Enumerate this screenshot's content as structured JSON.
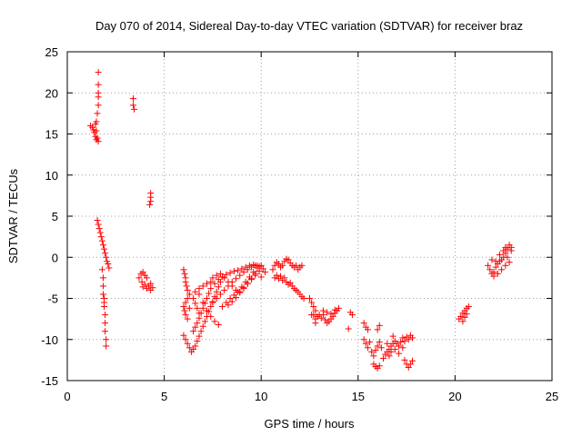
{
  "colors": {
    "series": "#ff0000",
    "grid": "#a0a0a0",
    "frame": "#000000",
    "background": "#ffffff"
  },
  "chart_data": {
    "type": "scatter",
    "marker": "plus",
    "title": "Day 070 of 2014, Sidereal Day-to-day VTEC variation (SDTVAR) for receiver braz",
    "xlabel": "GPS time / hours",
    "ylabel": "SDTVAR / TECUs",
    "xlim": [
      0,
      25
    ],
    "ylim": [
      -15,
      25
    ],
    "xticks": [
      0,
      5,
      10,
      15,
      20,
      25
    ],
    "yticks": [
      -15,
      -10,
      -5,
      0,
      5,
      10,
      15,
      20,
      25
    ],
    "grid": true,
    "series": [
      {
        "name": "SDTVAR",
        "points": [
          [
            1.2,
            16.0
          ],
          [
            1.3,
            15.8
          ],
          [
            1.35,
            15.5
          ],
          [
            1.4,
            15.2
          ],
          [
            1.45,
            14.7
          ],
          [
            1.5,
            14.3
          ],
          [
            1.55,
            14.5
          ],
          [
            1.6,
            14.1
          ],
          [
            1.45,
            16.2
          ],
          [
            1.5,
            15.4
          ],
          [
            1.5,
            16.5
          ],
          [
            1.55,
            17.5
          ],
          [
            1.6,
            18.5
          ],
          [
            1.6,
            19.5
          ],
          [
            1.6,
            20.0
          ],
          [
            1.6,
            21.0
          ],
          [
            1.6,
            22.5
          ],
          [
            1.55,
            4.5
          ],
          [
            1.6,
            4.0
          ],
          [
            1.65,
            3.5
          ],
          [
            1.7,
            3.0
          ],
          [
            1.75,
            2.5
          ],
          [
            1.8,
            2.0
          ],
          [
            1.85,
            1.5
          ],
          [
            1.9,
            1.0
          ],
          [
            1.95,
            0.5
          ],
          [
            2.0,
            0.0
          ],
          [
            2.05,
            -0.5
          ],
          [
            2.1,
            -0.8
          ],
          [
            2.15,
            -1.3
          ],
          [
            1.8,
            -1.5
          ],
          [
            1.85,
            -2.5
          ],
          [
            1.85,
            -3.5
          ],
          [
            1.85,
            -4.5
          ],
          [
            1.9,
            -5.0
          ],
          [
            1.9,
            -5.5
          ],
          [
            1.9,
            -6.0
          ],
          [
            1.95,
            -7.0
          ],
          [
            1.95,
            -8.0
          ],
          [
            1.95,
            -9.0
          ],
          [
            2.0,
            -10.0
          ],
          [
            2.0,
            -10.8
          ],
          [
            3.4,
            19.3
          ],
          [
            3.4,
            18.5
          ],
          [
            3.45,
            18.0
          ],
          [
            4.3,
            7.8
          ],
          [
            4.3,
            7.3
          ],
          [
            4.3,
            6.8
          ],
          [
            4.25,
            6.4
          ],
          [
            3.7,
            -2.5
          ],
          [
            3.8,
            -2.0
          ],
          [
            3.9,
            -1.8
          ],
          [
            4.0,
            -2.2
          ],
          [
            3.85,
            -3.0
          ],
          [
            3.9,
            -3.6
          ],
          [
            4.0,
            -3.3
          ],
          [
            4.1,
            -3.8
          ],
          [
            4.2,
            -3.5
          ],
          [
            4.3,
            -3.2
          ],
          [
            4.4,
            -3.7
          ],
          [
            4.3,
            -4.0
          ],
          [
            4.1,
            -2.5
          ],
          [
            6.0,
            -6.0
          ],
          [
            6.05,
            -6.5
          ],
          [
            6.1,
            -7.0
          ],
          [
            6.2,
            -7.5
          ],
          [
            6.1,
            -5.5
          ],
          [
            6.2,
            -5.0
          ],
          [
            6.3,
            -6.2
          ],
          [
            6.3,
            -4.5
          ],
          [
            6.2,
            -4.0
          ],
          [
            6.15,
            -3.5
          ],
          [
            6.1,
            -3.0
          ],
          [
            6.1,
            -2.5
          ],
          [
            6.05,
            -2.0
          ],
          [
            6.0,
            -1.5
          ],
          [
            6.0,
            -9.5
          ],
          [
            6.1,
            -10.0
          ],
          [
            6.2,
            -10.5
          ],
          [
            6.3,
            -11.0
          ],
          [
            6.4,
            -11.5
          ],
          [
            6.5,
            -11.2
          ],
          [
            6.6,
            -10.8
          ],
          [
            6.7,
            -10.2
          ],
          [
            6.8,
            -9.6
          ],
          [
            6.9,
            -9.0
          ],
          [
            7.0,
            -8.4
          ],
          [
            7.1,
            -7.8
          ],
          [
            7.2,
            -7.2
          ],
          [
            7.3,
            -6.6
          ],
          [
            7.4,
            -6.0
          ],
          [
            7.5,
            -5.4
          ],
          [
            7.6,
            -4.8
          ],
          [
            7.7,
            -4.2
          ],
          [
            7.8,
            -3.6
          ],
          [
            7.9,
            -3.0
          ],
          [
            6.5,
            -9.0
          ],
          [
            6.6,
            -8.5
          ],
          [
            6.7,
            -8.0
          ],
          [
            6.8,
            -7.4
          ],
          [
            6.9,
            -6.8
          ],
          [
            7.0,
            -6.2
          ],
          [
            7.1,
            -5.6
          ],
          [
            7.2,
            -5.0
          ],
          [
            7.3,
            -4.4
          ],
          [
            7.4,
            -3.8
          ],
          [
            6.8,
            -4.5
          ],
          [
            7.0,
            -5.5
          ],
          [
            7.2,
            -6.5
          ],
          [
            7.4,
            -7.2
          ],
          [
            7.6,
            -7.8
          ],
          [
            7.8,
            -8.2
          ],
          [
            6.5,
            -5.0
          ],
          [
            6.6,
            -5.6
          ],
          [
            6.7,
            -6.2
          ],
          [
            6.8,
            -6.8
          ],
          [
            6.6,
            -4.2
          ],
          [
            6.8,
            -3.8
          ],
          [
            7.0,
            -3.5
          ],
          [
            7.2,
            -3.2
          ],
          [
            7.4,
            -3.0
          ],
          [
            7.5,
            -5.5
          ],
          [
            7.7,
            -5.0
          ],
          [
            7.9,
            -4.5
          ],
          [
            8.1,
            -4.0
          ],
          [
            8.3,
            -3.5
          ],
          [
            8.5,
            -3.0
          ],
          [
            8.7,
            -2.6
          ],
          [
            8.9,
            -2.2
          ],
          [
            9.1,
            -1.8
          ],
          [
            9.3,
            -1.5
          ],
          [
            9.5,
            -1.2
          ],
          [
            9.7,
            -1.0
          ],
          [
            9.9,
            -1.1
          ],
          [
            7.5,
            -2.5
          ],
          [
            7.7,
            -2.2
          ],
          [
            7.9,
            -2.0
          ],
          [
            8.1,
            -2.5
          ],
          [
            8.3,
            -3.0
          ],
          [
            8.5,
            -3.5
          ],
          [
            8.7,
            -4.0
          ],
          [
            8.9,
            -4.2
          ],
          [
            9.1,
            -3.8
          ],
          [
            9.3,
            -3.2
          ],
          [
            9.5,
            -2.7
          ],
          [
            9.7,
            -2.2
          ],
          [
            9.9,
            -1.7
          ],
          [
            8.0,
            -6.0
          ],
          [
            8.2,
            -5.5
          ],
          [
            8.4,
            -5.0
          ],
          [
            8.6,
            -4.6
          ],
          [
            8.8,
            -4.2
          ],
          [
            9.0,
            -3.6
          ],
          [
            9.2,
            -3.0
          ],
          [
            9.4,
            -2.4
          ],
          [
            9.6,
            -1.8
          ],
          [
            9.8,
            -1.3
          ],
          [
            10.0,
            -1.0
          ],
          [
            8.3,
            -5.8
          ],
          [
            8.5,
            -5.4
          ],
          [
            8.7,
            -4.9
          ],
          [
            8.9,
            -4.3
          ],
          [
            9.1,
            -3.7
          ],
          [
            9.3,
            -3.2
          ],
          [
            9.5,
            -2.6
          ],
          [
            9.7,
            -2.0
          ],
          [
            7.6,
            -3.2
          ],
          [
            7.8,
            -2.7
          ],
          [
            8.0,
            -2.4
          ],
          [
            8.2,
            -2.1
          ],
          [
            8.4,
            -1.9
          ],
          [
            8.6,
            -1.7
          ],
          [
            8.8,
            -1.6
          ],
          [
            9.0,
            -1.4
          ],
          [
            9.2,
            -1.2
          ],
          [
            9.4,
            -1.0
          ],
          [
            9.6,
            -0.9
          ],
          [
            9.8,
            -1.0
          ],
          [
            10.1,
            -1.4
          ],
          [
            10.0,
            -2.4
          ],
          [
            10.2,
            -1.8
          ],
          [
            10.6,
            -1.5
          ],
          [
            10.7,
            -1.0
          ],
          [
            10.8,
            -0.6
          ],
          [
            10.9,
            -0.8
          ],
          [
            11.0,
            -1.2
          ],
          [
            11.1,
            -1.0
          ],
          [
            11.2,
            -0.5
          ],
          [
            11.3,
            -0.2
          ],
          [
            11.4,
            -0.3
          ],
          [
            11.5,
            -0.7
          ],
          [
            11.6,
            -1.0
          ],
          [
            11.7,
            -1.2
          ],
          [
            11.8,
            -1.0
          ],
          [
            11.9,
            -1.5
          ],
          [
            12.0,
            -1.2
          ],
          [
            12.1,
            -1.0
          ],
          [
            10.7,
            -2.5
          ],
          [
            10.8,
            -2.2
          ],
          [
            10.9,
            -2.6
          ],
          [
            11.0,
            -2.3
          ],
          [
            11.1,
            -2.8
          ],
          [
            11.2,
            -2.5
          ],
          [
            11.3,
            -3.0
          ],
          [
            11.4,
            -3.3
          ],
          [
            11.5,
            -3.1
          ],
          [
            11.6,
            -3.5
          ],
          [
            11.7,
            -3.8
          ],
          [
            11.8,
            -4.0
          ],
          [
            11.9,
            -4.2
          ],
          [
            12.0,
            -4.5
          ],
          [
            12.1,
            -4.8
          ],
          [
            12.2,
            -5.0
          ],
          [
            12.5,
            -5.0
          ],
          [
            12.6,
            -5.5
          ],
          [
            12.7,
            -6.0
          ],
          [
            12.8,
            -6.5
          ],
          [
            12.7,
            -7.0
          ],
          [
            12.8,
            -7.5
          ],
          [
            12.9,
            -7.2
          ],
          [
            13.0,
            -7.0
          ],
          [
            13.1,
            -7.4
          ],
          [
            13.2,
            -7.0
          ],
          [
            13.3,
            -7.6
          ],
          [
            13.4,
            -8.0
          ],
          [
            13.5,
            -7.8
          ],
          [
            13.6,
            -7.5
          ],
          [
            13.7,
            -7.2
          ],
          [
            13.8,
            -6.8
          ],
          [
            13.9,
            -6.5
          ],
          [
            14.0,
            -6.2
          ],
          [
            12.6,
            -7.0
          ],
          [
            12.8,
            -8.0
          ],
          [
            13.2,
            -6.5
          ],
          [
            13.4,
            -6.7
          ],
          [
            13.6,
            -6.9
          ],
          [
            13.8,
            -6.4
          ],
          [
            14.6,
            -6.7
          ],
          [
            14.7,
            -7.0
          ],
          [
            14.5,
            -8.7
          ],
          [
            15.3,
            -8.0
          ],
          [
            15.4,
            -8.5
          ],
          [
            15.5,
            -8.8
          ],
          [
            16.0,
            -8.8
          ],
          [
            16.1,
            -8.3
          ],
          [
            15.3,
            -10.0
          ],
          [
            15.4,
            -10.5
          ],
          [
            15.5,
            -11.0
          ],
          [
            15.6,
            -10.3
          ],
          [
            15.7,
            -11.5
          ],
          [
            15.8,
            -12.0
          ],
          [
            15.9,
            -11.3
          ],
          [
            16.0,
            -10.8
          ],
          [
            16.1,
            -10.3
          ],
          [
            16.2,
            -11.0
          ],
          [
            15.8,
            -13.0
          ],
          [
            15.9,
            -13.3
          ],
          [
            16.0,
            -13.5
          ],
          [
            16.1,
            -13.2
          ],
          [
            16.3,
            -12.3
          ],
          [
            16.4,
            -11.8
          ],
          [
            16.5,
            -11.5
          ],
          [
            16.6,
            -11.2
          ],
          [
            16.7,
            -10.8
          ],
          [
            16.8,
            -10.5
          ],
          [
            16.9,
            -10.2
          ],
          [
            17.0,
            -10.5
          ],
          [
            17.1,
            -10.8
          ],
          [
            17.2,
            -10.3
          ],
          [
            17.3,
            -9.8
          ],
          [
            17.4,
            -10.2
          ],
          [
            17.5,
            -9.7
          ],
          [
            17.6,
            -10.0
          ],
          [
            17.7,
            -9.5
          ],
          [
            17.8,
            -9.8
          ],
          [
            16.5,
            -10.5
          ],
          [
            16.7,
            -11.5
          ],
          [
            16.9,
            -11.2
          ],
          [
            17.1,
            -11.7
          ],
          [
            17.3,
            -11.0
          ],
          [
            16.6,
            -12.0
          ],
          [
            16.8,
            -9.6
          ],
          [
            17.4,
            -12.5
          ],
          [
            17.5,
            -13.0
          ],
          [
            17.6,
            -13.4
          ],
          [
            17.7,
            -13.0
          ],
          [
            17.8,
            -12.6
          ],
          [
            20.2,
            -7.5
          ],
          [
            20.3,
            -7.2
          ],
          [
            20.4,
            -6.8
          ],
          [
            20.5,
            -6.5
          ],
          [
            20.6,
            -6.2
          ],
          [
            20.7,
            -6.0
          ],
          [
            20.4,
            -7.8
          ],
          [
            20.5,
            -7.3
          ],
          [
            20.6,
            -6.9
          ],
          [
            21.7,
            -1.0
          ],
          [
            21.8,
            -1.5
          ],
          [
            21.9,
            -2.0
          ],
          [
            22.0,
            -1.8
          ],
          [
            22.1,
            -1.2
          ],
          [
            22.2,
            -0.8
          ],
          [
            22.3,
            -0.5
          ],
          [
            22.4,
            -0.3
          ],
          [
            22.5,
            0.0
          ],
          [
            22.6,
            0.5
          ],
          [
            22.7,
            1.0
          ],
          [
            22.8,
            1.5
          ],
          [
            22.9,
            0.8
          ],
          [
            21.9,
            -0.3
          ],
          [
            22.0,
            -2.3
          ],
          [
            22.1,
            -0.5
          ],
          [
            22.2,
            -2.0
          ],
          [
            22.3,
            0.3
          ],
          [
            22.4,
            -1.5
          ],
          [
            22.5,
            0.8
          ],
          [
            22.6,
            -1.0
          ],
          [
            22.7,
            0.0
          ],
          [
            22.8,
            -0.6
          ],
          [
            22.9,
            1.2
          ],
          [
            22.6,
            1.2
          ]
        ]
      }
    ]
  }
}
